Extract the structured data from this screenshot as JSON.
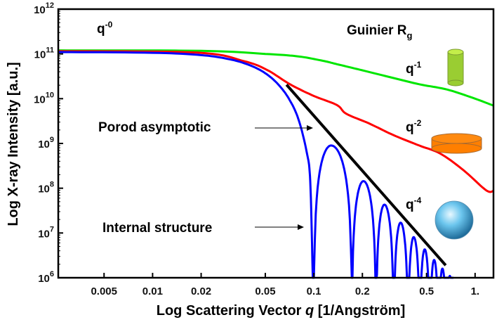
{
  "chart_data": {
    "type": "line",
    "xlabel": "Log Scattering Vector",
    "xlabel_symbol": "q",
    "xlabel_unit": "[1/Angström]",
    "ylabel": "Log X-ray Intensity [a.u.]",
    "x_scale": "log",
    "y_scale": "log",
    "xlim": [
      0.0026,
      1.3
    ],
    "ylim": [
      1000000.0,
      1000000000000.0
    ],
    "x_ticks": [
      {
        "value": 0.005,
        "label": "0.005"
      },
      {
        "value": 0.01,
        "label": "0.01"
      },
      {
        "value": 0.02,
        "label": "0.02"
      },
      {
        "value": 0.05,
        "label": "0.05"
      },
      {
        "value": 0.1,
        "label": "0.1"
      },
      {
        "value": 0.2,
        "label": "0.2"
      },
      {
        "value": 0.5,
        "label": "0.5"
      },
      {
        "value": 1,
        "label": "1."
      }
    ],
    "y_ticks": [
      {
        "value": 1000000.0,
        "base": "10",
        "exp": "6"
      },
      {
        "value": 10000000.0,
        "base": "10",
        "exp": "7"
      },
      {
        "value": 100000000.0,
        "base": "10",
        "exp": "8"
      },
      {
        "value": 1000000000.0,
        "base": "10",
        "exp": "9"
      },
      {
        "value": 10000000000.0,
        "base": "10",
        "exp": "10"
      },
      {
        "value": 100000000000.0,
        "base": "10",
        "exp": "11"
      },
      {
        "value": 1000000000000.0,
        "base": "10",
        "exp": "12"
      }
    ],
    "grid": false,
    "series": [
      {
        "color": "#00e600",
        "points": [
          [
            0.0026,
            120000000000.0
          ],
          [
            0.02,
            117000000000.0
          ],
          [
            0.05,
            100000000000.0
          ],
          [
            0.08,
            88000000000.0
          ],
          [
            0.114,
            70000000000.0
          ],
          [
            0.139,
            59000000000.0
          ],
          [
            0.2,
            43000000000.0
          ],
          [
            0.3,
            30000000000.0
          ],
          [
            0.45,
            21000000000.0
          ],
          [
            0.67,
            16000000000.0
          ],
          [
            1.0,
            10000000000.0
          ],
          [
            1.3,
            7000000000.0
          ]
        ]
      },
      {
        "color": "#ff0000",
        "points": [
          [
            0.0026,
            115000000000.0
          ],
          [
            0.0188,
            107000000000.0
          ],
          [
            0.0368,
            69000000000.0
          ],
          [
            0.0512,
            44000000000.0
          ],
          [
            0.0711,
            21000000000.0
          ],
          [
            0.1,
            11500000000.0
          ],
          [
            0.139,
            7200000000.0
          ],
          [
            0.159,
            4600000000.0
          ],
          [
            0.22,
            2800000000.0
          ],
          [
            0.31,
            1550000000.0
          ],
          [
            0.45,
            900000000.0
          ],
          [
            0.61,
            590000000.0
          ],
          [
            0.85,
            250000000.0
          ],
          [
            1.17,
            90000000.0
          ],
          [
            1.3,
            87000000.0
          ]
        ]
      },
      {
        "color": "#0000ff",
        "points": [
          [
            0.0026,
            110000000000.0
          ],
          [
            0.01,
            106000000000.0
          ],
          [
            0.02,
            94000000000.0
          ],
          [
            0.03,
            76000000000.0
          ],
          [
            0.04,
            56000000000.0
          ],
          [
            0.05,
            37000000000.0
          ],
          [
            0.06,
            21000000000.0
          ],
          [
            0.07,
            10000000000.0
          ],
          [
            0.08,
            3600000000.0
          ],
          [
            0.09,
            680000000.0
          ],
          [
            0.095,
            140000000.0
          ],
          [
            0.0985,
            1000000.0
          ]
        ],
        "lobes": [
          [
            0.1,
            0.128,
            900000000.0,
            0.172
          ],
          [
            0.172,
            0.203,
            144000000.0,
            0.243
          ],
          [
            0.243,
            0.274,
            43000000.0,
            0.313
          ],
          [
            0.313,
            0.345,
            17000000.0,
            0.384
          ],
          [
            0.384,
            0.416,
            8100000.0,
            0.454
          ],
          [
            0.454,
            0.487,
            4300000.0,
            0.524
          ],
          [
            0.524,
            0.557,
            2500000.0,
            0.594
          ],
          [
            0.594,
            0.627,
            1600000.0,
            0.664
          ],
          [
            0.664,
            0.697,
            1100000.0,
            0.734
          ]
        ]
      },
      {
        "color": "#000000",
        "points": [
          [
            0.0677,
            20500000000.0
          ],
          [
            0.657,
            1900000.0
          ]
        ]
      }
    ],
    "annotations": {
      "q0": {
        "base": "q",
        "exp": "-0"
      },
      "guinier": {
        "text": "Guinier R",
        "sub": "g"
      },
      "q1": {
        "base": "q",
        "exp": "-1"
      },
      "q2": {
        "base": "q",
        "exp": "-2"
      },
      "q4": {
        "base": "q",
        "exp": "-4"
      },
      "porod": "Porod asymptotic",
      "internal": "Internal structure"
    },
    "icons": {
      "cylinder": {
        "name": "cylinder-icon",
        "color": "#9acd32"
      },
      "disk": {
        "name": "disk-icon",
        "color": "#ff7f00"
      },
      "sphere": {
        "name": "sphere-icon",
        "color": "#4fb3e0"
      }
    }
  }
}
